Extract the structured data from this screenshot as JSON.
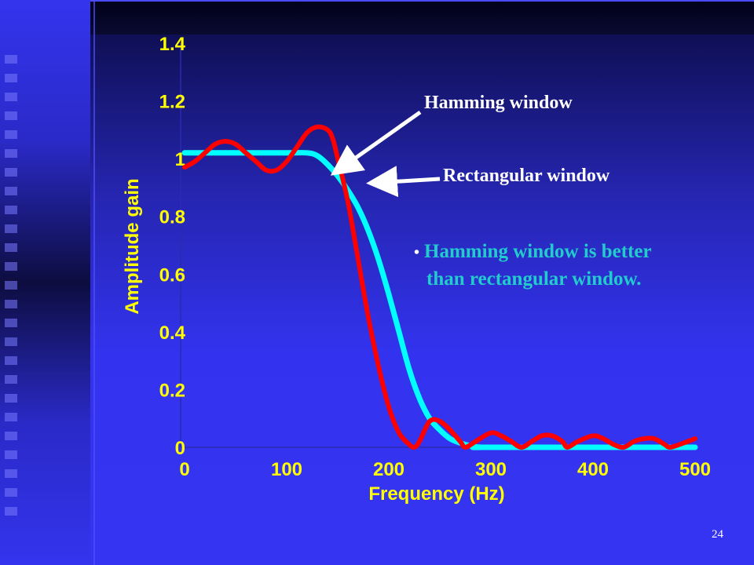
{
  "slide": {
    "page_number": "24",
    "annotation_hamming": "Hamming window",
    "annotation_rect": "Rectangular window",
    "note_line1": "Hamming window is better",
    "note_line2": "than rectangular window",
    "note_period": "."
  },
  "colors": {
    "hamming": "#00ffff",
    "rectangular": "#ff0000",
    "axis_text": "#ffff00",
    "note_text": "#22cccc"
  },
  "chart_data": {
    "type": "line",
    "xlabel": "Frequency (Hz)",
    "ylabel": "Amplitude gain",
    "xlim": [
      0,
      500
    ],
    "ylim": [
      0,
      1.4
    ],
    "x_ticks": [
      "0",
      "100",
      "200",
      "300",
      "400",
      "500"
    ],
    "y_ticks": [
      "0",
      "0.2",
      "0.4",
      "0.6",
      "0.8",
      "1",
      "1.2",
      "1.4"
    ],
    "grid": false,
    "series": [
      {
        "name": "Hamming window",
        "x": [
          0,
          20,
          60,
          100,
          120,
          130,
          140,
          150,
          160,
          170,
          180,
          190,
          200,
          210,
          220,
          230,
          240,
          250,
          260,
          270,
          280,
          290,
          300,
          500
        ],
        "y": [
          1.02,
          1.02,
          1.02,
          1.02,
          1.02,
          1.01,
          0.98,
          0.94,
          0.89,
          0.83,
          0.75,
          0.65,
          0.53,
          0.4,
          0.27,
          0.17,
          0.1,
          0.06,
          0.03,
          0.015,
          0.005,
          0.0,
          0.0,
          0.0
        ]
      },
      {
        "name": "Rectangular window",
        "x": [
          0,
          10,
          20,
          30,
          40,
          50,
          60,
          70,
          80,
          90,
          100,
          110,
          120,
          130,
          140,
          145,
          150,
          160,
          170,
          180,
          190,
          200,
          210,
          220,
          225,
          230,
          240,
          250,
          260,
          270,
          275,
          285,
          300,
          310,
          320,
          330,
          340,
          350,
          360,
          370,
          375,
          385,
          400,
          410,
          420,
          430,
          440,
          450,
          460,
          470,
          475,
          485,
          500
        ],
        "y": [
          0.97,
          0.99,
          1.02,
          1.05,
          1.06,
          1.05,
          1.02,
          0.99,
          0.96,
          0.96,
          0.99,
          1.04,
          1.09,
          1.11,
          1.1,
          1.07,
          1.0,
          0.85,
          0.65,
          0.45,
          0.28,
          0.14,
          0.05,
          0.01,
          0.0,
          0.02,
          0.09,
          0.09,
          0.06,
          0.02,
          0.0,
          0.02,
          0.05,
          0.04,
          0.02,
          0.0,
          0.02,
          0.04,
          0.04,
          0.02,
          0.0,
          0.02,
          0.04,
          0.03,
          0.01,
          0.0,
          0.02,
          0.03,
          0.03,
          0.01,
          0.0,
          0.01,
          0.03
        ]
      }
    ]
  }
}
